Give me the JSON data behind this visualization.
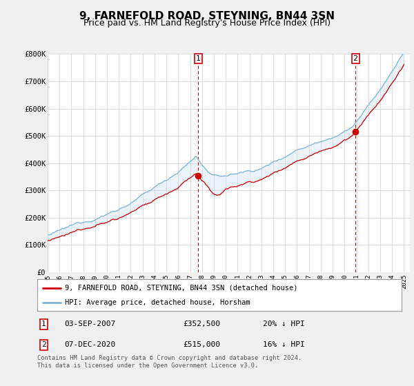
{
  "title": "9, FARNEFOLD ROAD, STEYNING, BN44 3SN",
  "subtitle": "Price paid vs. HM Land Registry's House Price Index (HPI)",
  "ylim": [
    0,
    800000
  ],
  "yticks": [
    0,
    100000,
    200000,
    300000,
    400000,
    500000,
    600000,
    700000,
    800000
  ],
  "ytick_labels": [
    "£0",
    "£100K",
    "£200K",
    "£300K",
    "£400K",
    "£500K",
    "£600K",
    "£700K",
    "£800K"
  ],
  "hpi_color": "#7ab4d8",
  "hpi_fill_color": "#c8dff0",
  "price_color": "#cc0000",
  "sale1_date": 2007.67,
  "sale1_price": 352500,
  "sale2_date": 2020.92,
  "sale2_price": 515000,
  "background_color": "#f0f0f0",
  "plot_bg_color": "#ffffff",
  "grid_color": "#d0d0d0",
  "legend_label_price": "9, FARNEFOLD ROAD, STEYNING, BN44 3SN (detached house)",
  "legend_label_hpi": "HPI: Average price, detached house, Horsham",
  "note1_date": "03-SEP-2007",
  "note1_price": "£352,500",
  "note1_hpi": "20% ↓ HPI",
  "note2_date": "07-DEC-2020",
  "note2_price": "£515,000",
  "note2_hpi": "16% ↓ HPI",
  "footer": "Contains HM Land Registry data © Crown copyright and database right 2024.\nThis data is licensed under the Open Government Licence v3.0.",
  "title_fontsize": 11,
  "subtitle_fontsize": 9
}
